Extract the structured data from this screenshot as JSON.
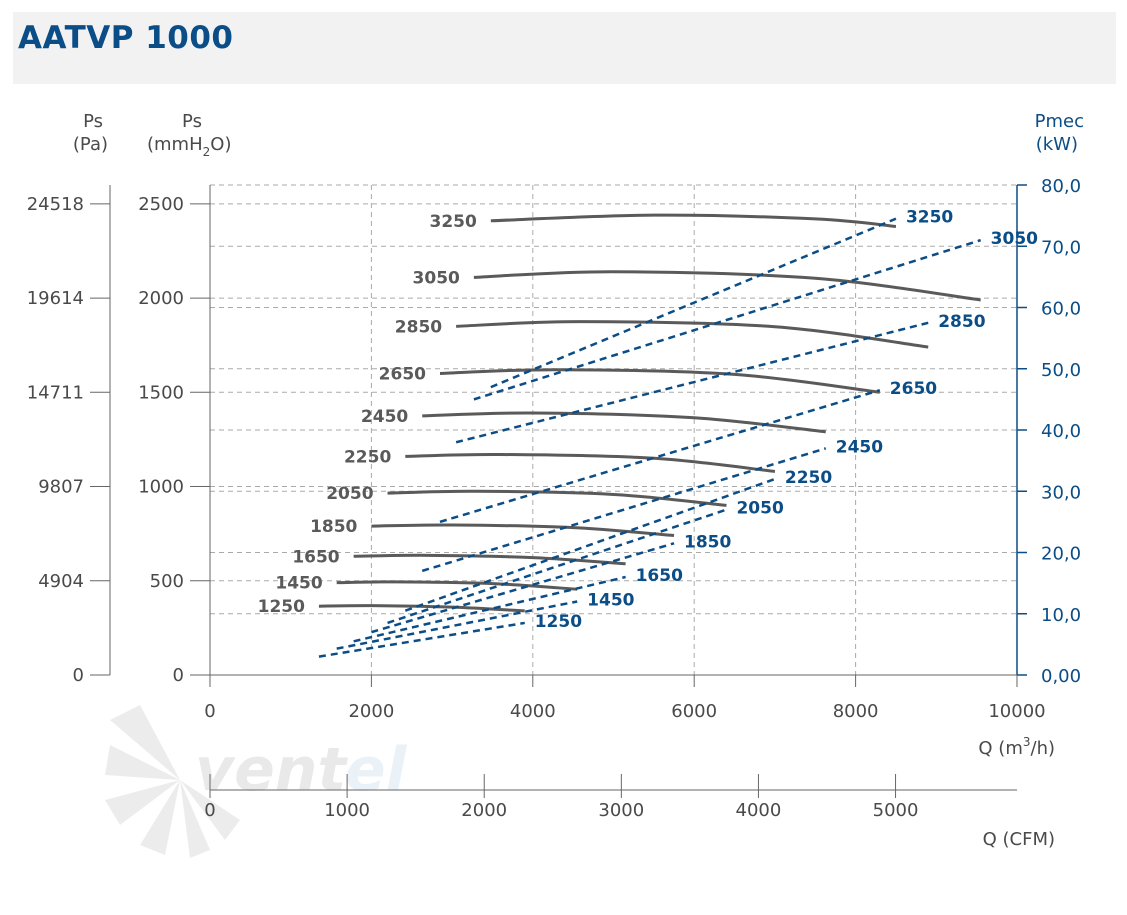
{
  "title": "AATVP 1000",
  "axes": {
    "ps_pa_label_1": "Ps",
    "ps_pa_label_2": "(Pa)",
    "ps_mm_label_1": "Ps",
    "ps_mm_label_2": "(mmH",
    "ps_mm_label_sub": "2",
    "ps_mm_label_3": "O)",
    "pmec_label_1": "Pmec",
    "pmec_label_2": "(kW)",
    "q_m3h_label": "Q (m",
    "q_m3h_sup": "3",
    "q_m3h_tail": "/h)",
    "q_cfm_label": "Q (CFM)"
  },
  "chart_data": {
    "type": "line",
    "title": "AATVP 1000",
    "xlabel": "Q (m3/h)",
    "xlabel_secondary": "Q (CFM)",
    "ylabel": "Ps (mmH2O)",
    "ylabel_secondary": "Ps (Pa)",
    "ylabel_right": "Pmec (kW)",
    "xlim": [
      0,
      10000
    ],
    "ylim": [
      0,
      2600
    ],
    "y_right_lim": [
      0,
      80
    ],
    "x_ticks": [
      "0",
      "2000",
      "4000",
      "6000",
      "8000",
      "10000"
    ],
    "cfm_ticks": [
      "0",
      "1000",
      "2000",
      "3000",
      "4000",
      "5000"
    ],
    "cfm_values": [
      0,
      1000,
      2000,
      3000,
      4000,
      5000
    ],
    "y_ticks_mm": [
      "0",
      "500",
      "1000",
      "1500",
      "2000",
      "2500"
    ],
    "y_ticks_pa": [
      "0",
      "4904",
      "9807",
      "14711",
      "19614",
      "24518"
    ],
    "y_ticks_right": [
      "0,00",
      "10,0",
      "20,0",
      "30,0",
      "40,0",
      "50,0",
      "60,0",
      "70,0",
      "80,0"
    ],
    "grid": true,
    "pressure_curves": [
      {
        "name": "1250",
        "points": [
          [
            1350,
            365
          ],
          [
            2000,
            368
          ],
          [
            3000,
            360
          ],
          [
            3900,
            340
          ]
        ]
      },
      {
        "name": "1450",
        "points": [
          [
            1570,
            490
          ],
          [
            2300,
            494
          ],
          [
            3500,
            485
          ],
          [
            4550,
            455
          ]
        ]
      },
      {
        "name": "1650",
        "points": [
          [
            1780,
            630
          ],
          [
            2700,
            635
          ],
          [
            4000,
            623
          ],
          [
            5150,
            590
          ]
        ]
      },
      {
        "name": "1850",
        "points": [
          [
            2000,
            790
          ],
          [
            3000,
            796
          ],
          [
            4500,
            782
          ],
          [
            5750,
            740
          ]
        ]
      },
      {
        "name": "2050",
        "points": [
          [
            2200,
            965
          ],
          [
            3300,
            975
          ],
          [
            5000,
            958
          ],
          [
            6400,
            900
          ]
        ]
      },
      {
        "name": "2250",
        "points": [
          [
            2420,
            1160
          ],
          [
            3600,
            1170
          ],
          [
            5500,
            1150
          ],
          [
            7000,
            1080
          ]
        ]
      },
      {
        "name": "2450",
        "points": [
          [
            2630,
            1375
          ],
          [
            4000,
            1390
          ],
          [
            6000,
            1365
          ],
          [
            7630,
            1290
          ]
        ]
      },
      {
        "name": "2650",
        "points": [
          [
            2850,
            1600
          ],
          [
            4300,
            1620
          ],
          [
            6500,
            1595
          ],
          [
            8300,
            1500
          ]
        ]
      },
      {
        "name": "2850",
        "points": [
          [
            3050,
            1850
          ],
          [
            4600,
            1875
          ],
          [
            7000,
            1848
          ],
          [
            8900,
            1740
          ]
        ]
      },
      {
        "name": "3050",
        "points": [
          [
            3270,
            2110
          ],
          [
            5000,
            2140
          ],
          [
            7500,
            2105
          ],
          [
            9550,
            1990
          ]
        ]
      },
      {
        "name": "3250",
        "points": [
          [
            3480,
            2410
          ],
          [
            5500,
            2440
          ],
          [
            7500,
            2420
          ],
          [
            8500,
            2380
          ]
        ]
      }
    ],
    "power_curves": [
      {
        "name": "1250",
        "points": [
          [
            1350,
            3.0
          ],
          [
            3900,
            8.5
          ]
        ]
      },
      {
        "name": "1450",
        "points": [
          [
            1570,
            4.3
          ],
          [
            4550,
            12.0
          ]
        ]
      },
      {
        "name": "1650",
        "points": [
          [
            1780,
            5.5
          ],
          [
            5150,
            16.0
          ]
        ]
      },
      {
        "name": "1850",
        "points": [
          [
            2000,
            7.0
          ],
          [
            5750,
            21.5
          ]
        ]
      },
      {
        "name": "2050",
        "points": [
          [
            2200,
            8.5
          ],
          [
            6400,
            27.0
          ]
        ]
      },
      {
        "name": "2250",
        "points": [
          [
            2420,
            10.5
          ],
          [
            7000,
            32.0
          ]
        ]
      },
      {
        "name": "2450",
        "points": [
          [
            2630,
            17.0
          ],
          [
            7630,
            37.0
          ]
        ]
      },
      {
        "name": "2650",
        "points": [
          [
            2850,
            25.0
          ],
          [
            8300,
            46.5
          ]
        ]
      },
      {
        "name": "2850",
        "points": [
          [
            3050,
            38.0
          ],
          [
            8900,
            57.5
          ]
        ]
      },
      {
        "name": "3050",
        "points": [
          [
            3270,
            45.0
          ],
          [
            9550,
            71.0
          ]
        ]
      },
      {
        "name": "3250",
        "points": [
          [
            3480,
            47.0
          ],
          [
            8500,
            74.5
          ]
        ]
      }
    ],
    "pressure_labels": [
      "1250",
      "1450",
      "1650",
      "1850",
      "2050",
      "2250",
      "2450",
      "2650",
      "2850",
      "3050",
      "3250"
    ],
    "power_labels": [
      "1250",
      "1450",
      "1650",
      "1850",
      "2050",
      "2250",
      "2450",
      "2650",
      "2850",
      "3050",
      "3250"
    ]
  },
  "colors": {
    "accent": "#0b4d86",
    "pressure_curve": "#5a5a5a",
    "power_curve": "#0b4d86",
    "grid": "#aaaaaa",
    "header_bg": "#f2f2f2"
  }
}
